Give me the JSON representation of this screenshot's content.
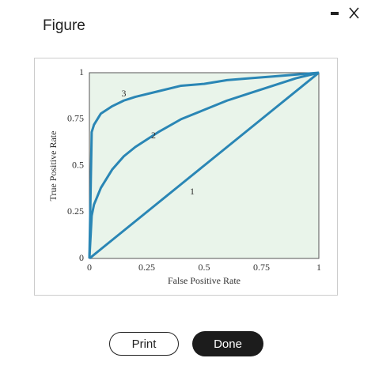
{
  "header": {
    "title": "Figure"
  },
  "buttons": [
    "Print",
    "Done"
  ],
  "chart_data": {
    "type": "line",
    "x_label": "False Positive Rate",
    "y_label": "True Positive Rate",
    "x": [
      0,
      0.01,
      0.02,
      0.05,
      0.1,
      0.15,
      0.2,
      0.3,
      0.4,
      0.5,
      0.6,
      0.7,
      0.8,
      0.9,
      1
    ],
    "series": [
      {
        "name": "1",
        "color": "#2a86b5",
        "values": [
          0,
          0.01,
          0.02,
          0.05,
          0.1,
          0.15,
          0.2,
          0.3,
          0.4,
          0.5,
          0.6,
          0.7,
          0.8,
          0.9,
          1
        ]
      },
      {
        "name": "2",
        "color": "#2a86b5",
        "values": [
          0,
          0.23,
          0.29,
          0.38,
          0.48,
          0.55,
          0.6,
          0.68,
          0.75,
          0.8,
          0.85,
          0.89,
          0.93,
          0.97,
          1
        ]
      },
      {
        "name": "3",
        "color": "#2a86b5",
        "values": [
          0,
          0.68,
          0.72,
          0.78,
          0.82,
          0.85,
          0.87,
          0.9,
          0.93,
          0.94,
          0.96,
          0.97,
          0.98,
          0.99,
          1
        ]
      }
    ],
    "xlim": [
      0,
      1
    ],
    "ylim": [
      0,
      1
    ],
    "xticks": [
      0,
      0.25,
      0.5,
      0.75,
      1
    ],
    "yticks": [
      0,
      0.25,
      0.5,
      0.75,
      1
    ],
    "grid": false,
    "background": "#e9f4ea"
  }
}
